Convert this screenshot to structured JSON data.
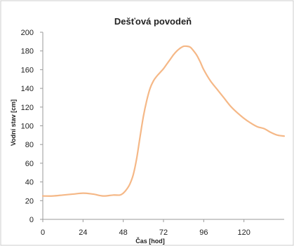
{
  "chart_data": {
    "type": "line",
    "title": "Dešťová povodeň",
    "xlabel": "Čas [hod]",
    "ylabel": "Vodní stav  [cm]",
    "xlim": [
      0,
      144
    ],
    "ylim": [
      0,
      200
    ],
    "x_ticks": [
      0,
      24,
      48,
      72,
      96,
      120
    ],
    "y_ticks": [
      0,
      20,
      40,
      60,
      80,
      100,
      120,
      140,
      160,
      180,
      200
    ],
    "grid": false,
    "legend": "none",
    "series": [
      {
        "color": "#f5b887",
        "x": [
          0,
          6,
          12,
          18,
          24,
          30,
          36,
          42,
          46,
          48,
          50,
          52,
          54,
          56,
          58,
          60,
          62,
          64,
          66,
          68,
          70,
          72,
          74,
          76,
          78,
          80,
          82,
          84,
          86,
          88,
          90,
          92,
          94,
          96,
          100,
          104,
          108,
          112,
          116,
          120,
          124,
          128,
          132,
          136,
          140,
          144
        ],
        "y": [
          25,
          25,
          26,
          27,
          28,
          27,
          25,
          26,
          26,
          28,
          32,
          38,
          48,
          65,
          88,
          110,
          127,
          140,
          148,
          153,
          157,
          161,
          166,
          171,
          176,
          180,
          183,
          185,
          185,
          184,
          180,
          175,
          168,
          160,
          148,
          139,
          130,
          121,
          114,
          108,
          103,
          99,
          97,
          93,
          90,
          89
        ]
      }
    ]
  }
}
